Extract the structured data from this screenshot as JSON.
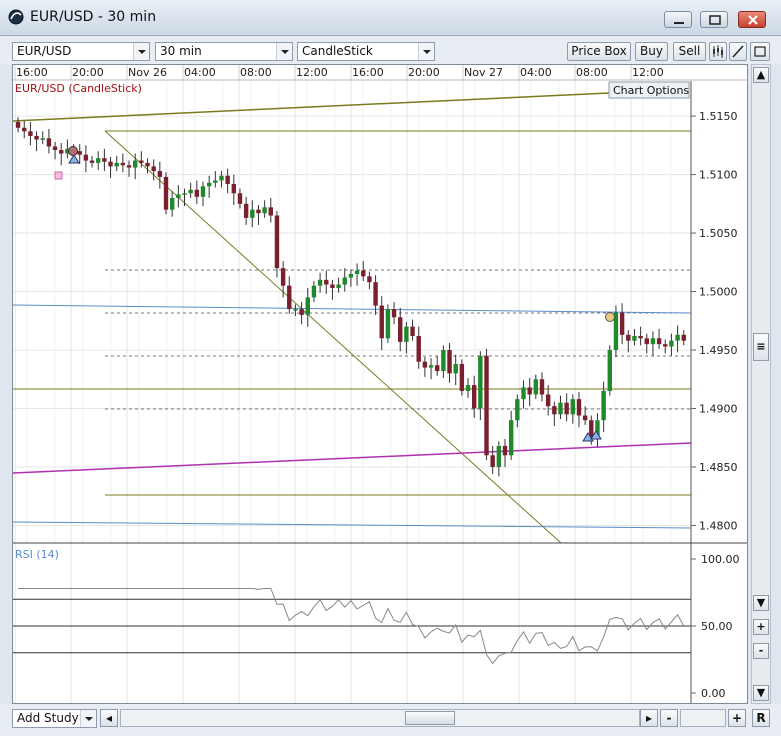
{
  "window": {
    "title": "EUR/USD - 30 min",
    "app_icon": "chart-app-icon",
    "controls": [
      "minimize-icon",
      "restore-icon",
      "close-icon"
    ]
  },
  "toolbar": {
    "symbol": "EUR/USD",
    "timeframe": "30 min",
    "chart_type": "CandleStick",
    "price_box_label": "Price Box",
    "buy_label": "Buy",
    "sell_label": "Sell",
    "icons": [
      "candle-style-icon",
      "draw-line-icon",
      "expand-icon"
    ]
  },
  "chart": {
    "series_label": "EUR/USD (CandleStick)",
    "options_label": "Chart Options",
    "time_labels": [
      "16:00",
      "20:00",
      "Nov 26",
      "04:00",
      "08:00",
      "12:00",
      "16:00",
      "20:00",
      "Nov 27",
      "04:00",
      "08:00",
      "12:00"
    ],
    "price_labels": [
      "1.5150",
      "1.5100",
      "1.5050",
      "1.5000",
      "1.4950",
      "1.4900",
      "1.4850",
      "1.4800"
    ],
    "rsi_label": "RSI (14)",
    "rsi_labels": [
      "100.00",
      "50.00",
      "0.00"
    ],
    "colors": {
      "up": "#1f8a2c",
      "down": "#7a1f2e",
      "wick": "#333333",
      "rsi": "#888888"
    }
  },
  "chart_data": {
    "type": "candlestick",
    "title": "EUR/USD (CandleStick)",
    "interval": "30 min",
    "ylim": [
      1.4785,
      1.518
    ],
    "rsi_period": 14,
    "rsi_ylim": [
      0,
      100
    ]
  },
  "bottombar": {
    "add_study_label": "Add Study",
    "minus_label": "-",
    "plus_label": "+",
    "reset_label": "R"
  },
  "scrollbar": {
    "up_label": "▲",
    "down_label": "▼",
    "plus_label": "+",
    "minus_label": "-"
  }
}
